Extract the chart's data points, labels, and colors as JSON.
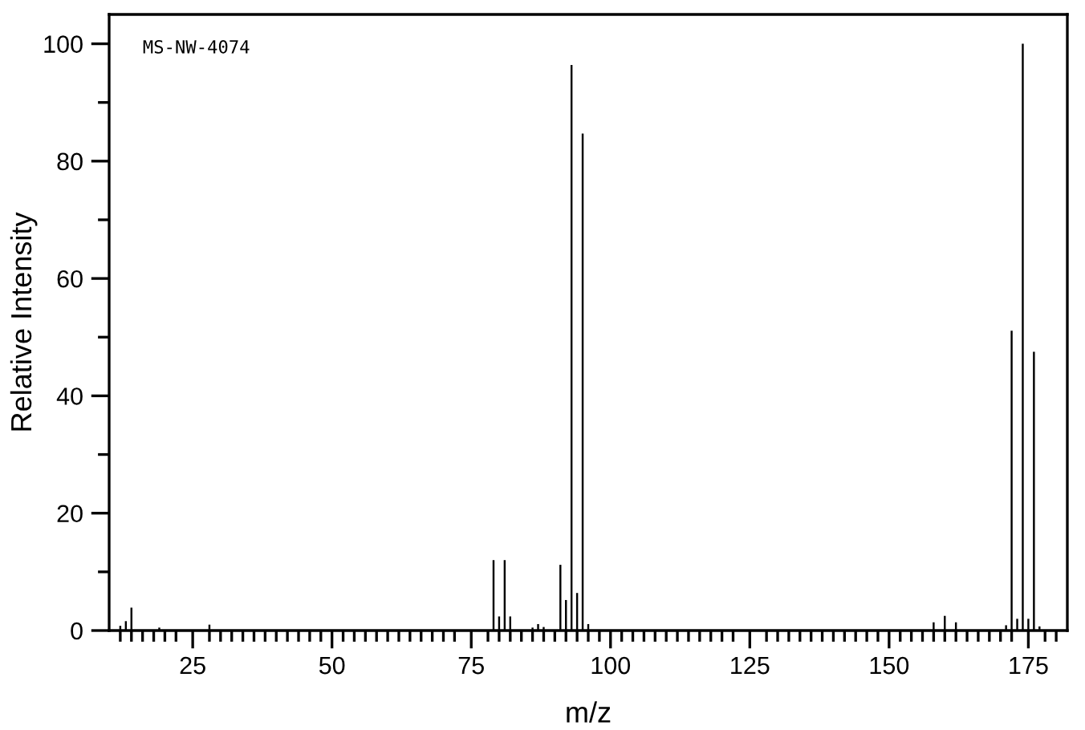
{
  "chart_data": {
    "type": "bar",
    "xlabel": "m/z",
    "ylabel": "Relative Intensity",
    "annotations": [
      "MS-NW-4074"
    ],
    "x": [
      12,
      13,
      14,
      19,
      28,
      79,
      80,
      81,
      82,
      86,
      87,
      88,
      91,
      92,
      93,
      94,
      95,
      96,
      158,
      160,
      162,
      171,
      172,
      173,
      174,
      175,
      176,
      177
    ],
    "values": [
      0.8,
      1.6,
      3.9,
      0.5,
      1.0,
      12.0,
      2.4,
      12.0,
      2.4,
      0.5,
      1.1,
      0.6,
      11.2,
      5.2,
      96.4,
      6.4,
      84.7,
      1.1,
      1.4,
      2.5,
      1.4,
      0.9,
      51.1,
      2.0,
      100,
      2.0,
      47.5,
      0.7
    ],
    "color": "#000000",
    "xlim": [
      10,
      182
    ],
    "ylim": [
      0,
      105
    ],
    "xticks": [
      {
        "value": 12,
        "label": null
      },
      {
        "value": 14,
        "label": null
      },
      {
        "value": 16,
        "label": null
      },
      {
        "value": 18,
        "label": null
      },
      {
        "value": 20,
        "label": null
      },
      {
        "value": 22,
        "label": null
      },
      25,
      {
        "value": 28,
        "label": null
      },
      {
        "value": 30,
        "label": null
      },
      {
        "value": 32,
        "label": null
      },
      {
        "value": 34,
        "label": null
      },
      {
        "value": 36,
        "label": null
      },
      {
        "value": 38,
        "label": null
      },
      {
        "value": 40,
        "label": null
      },
      {
        "value": 42,
        "label": null
      },
      {
        "value": 44,
        "label": null
      },
      {
        "value": 46,
        "label": null
      },
      {
        "value": 48,
        "label": null
      },
      50,
      {
        "value": 52,
        "label": null
      },
      {
        "value": 54,
        "label": null
      },
      {
        "value": 56,
        "label": null
      },
      {
        "value": 58,
        "label": null
      },
      {
        "value": 60,
        "label": null
      },
      {
        "value": 62,
        "label": null
      },
      {
        "value": 64,
        "label": null
      },
      {
        "value": 66,
        "label": null
      },
      {
        "value": 68,
        "label": null
      },
      {
        "value": 70,
        "label": null
      },
      {
        "value": 72,
        "label": null
      },
      75,
      {
        "value": 78,
        "label": null
      },
      {
        "value": 80,
        "label": null
      },
      {
        "value": 82,
        "label": null
      },
      {
        "value": 84,
        "label": null
      },
      {
        "value": 86,
        "label": null
      },
      {
        "value": 88,
        "label": null
      },
      {
        "value": 90,
        "label": null
      },
      {
        "value": 92,
        "label": null
      },
      {
        "value": 94,
        "label": null
      },
      {
        "value": 96,
        "label": null
      },
      {
        "value": 98,
        "label": null
      },
      100,
      {
        "value": 102,
        "label": null
      },
      {
        "value": 104,
        "label": null
      },
      {
        "value": 106,
        "label": null
      },
      {
        "value": 108,
        "label": null
      },
      {
        "value": 110,
        "label": null
      },
      {
        "value": 112,
        "label": null
      },
      {
        "value": 114,
        "label": null
      },
      {
        "value": 116,
        "label": null
      },
      {
        "value": 118,
        "label": null
      },
      {
        "value": 120,
        "label": null
      },
      {
        "value": 122,
        "label": null
      },
      125,
      {
        "value": 128,
        "label": null
      },
      {
        "value": 130,
        "label": null
      },
      {
        "value": 132,
        "label": null
      },
      {
        "value": 134,
        "label": null
      },
      {
        "value": 136,
        "label": null
      },
      {
        "value": 138,
        "label": null
      },
      {
        "value": 140,
        "label": null
      },
      {
        "value": 142,
        "label": null
      },
      {
        "value": 144,
        "label": null
      },
      {
        "value": 146,
        "label": null
      },
      {
        "value": 148,
        "label": null
      },
      150,
      {
        "value": 152,
        "label": null
      },
      {
        "value": 154,
        "label": null
      },
      {
        "value": 156,
        "label": null
      },
      {
        "value": 158,
        "label": null
      },
      {
        "value": 160,
        "label": null
      },
      {
        "value": 162,
        "label": null
      },
      {
        "value": 164,
        "label": null
      },
      {
        "value": 166,
        "label": null
      },
      {
        "value": 168,
        "label": null
      },
      {
        "value": 170,
        "label": null
      },
      {
        "value": 172,
        "label": null
      },
      175,
      {
        "value": 178,
        "label": null
      },
      {
        "value": 180,
        "label": null
      }
    ],
    "yticks": [
      0,
      {
        "value": 10,
        "label": null
      },
      20,
      {
        "value": 30,
        "label": null
      },
      40,
      {
        "value": 50,
        "label": null
      },
      60,
      {
        "value": 70,
        "label": null
      },
      80,
      {
        "value": 90,
        "label": null
      },
      100
    ],
    "grid": false,
    "legend": false
  }
}
